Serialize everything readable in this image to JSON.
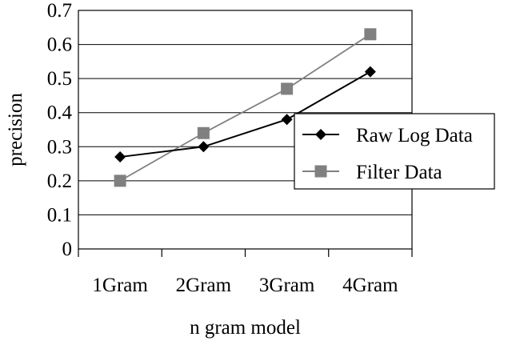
{
  "chart_data": {
    "type": "line",
    "categories": [
      "1Gram",
      "2Gram",
      "3Gram",
      "4Gram"
    ],
    "series": [
      {
        "name": "Raw Log Data",
        "values": [
          0.27,
          0.3,
          0.38,
          0.52
        ],
        "color": "#000000",
        "marker": "diamond"
      },
      {
        "name": "Filter Data",
        "values": [
          0.2,
          0.34,
          0.47,
          0.63
        ],
        "color": "#808080",
        "marker": "square"
      }
    ],
    "xlabel": "n gram model",
    "ylabel": "precision",
    "ylim": [
      0,
      0.7
    ],
    "yticks": [
      "0",
      "0.1",
      "0.2",
      "0.3",
      "0.4",
      "0.5",
      "0.6",
      "0.7"
    ],
    "grid": "horizontal",
    "legend_position": "right"
  }
}
